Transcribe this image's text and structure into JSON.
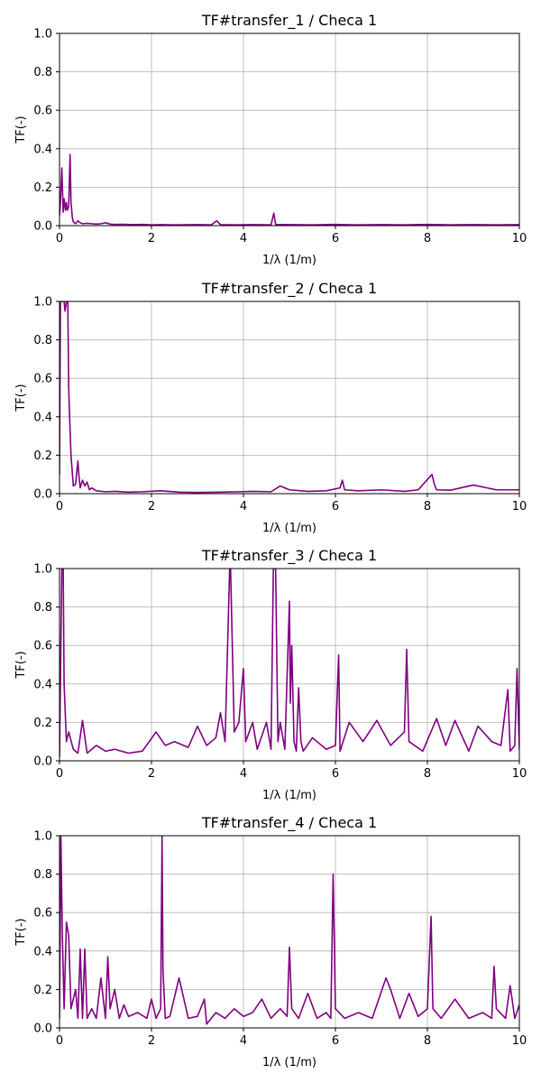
{
  "colors": {
    "line": "#800080",
    "grid": "#b0b0b0",
    "axes": "#000000"
  },
  "chart_data": [
    {
      "type": "line",
      "title": "TF#transfer_1 / Checa 1",
      "xlabel": "1/λ (1/m)",
      "ylabel": "TF(-)",
      "xlim": [
        0,
        10
      ],
      "ylim": [
        0,
        1
      ],
      "xticks": [
        "0",
        "2",
        "4",
        "6",
        "8",
        "10"
      ],
      "yticks": [
        "0.0",
        "0.2",
        "0.4",
        "0.6",
        "0.8",
        "1.0"
      ],
      "grid": true,
      "series": [
        {
          "x": [
            0,
            0.02,
            0.05,
            0.08,
            0.1,
            0.13,
            0.15,
            0.17,
            0.2,
            0.23,
            0.25,
            0.28,
            0.3,
            0.35,
            0.4,
            0.45,
            0.5,
            0.6,
            0.7,
            0.8,
            0.9,
            1.0,
            1.1,
            1.2,
            1.4,
            1.6,
            1.8,
            2.0,
            2.2,
            2.5,
            3.0,
            3.3,
            3.42,
            3.5,
            3.8,
            4.2,
            4.6,
            4.66,
            4.7,
            5.0,
            5.5,
            6.0,
            6.5,
            7.0,
            7.5,
            8.0,
            8.5,
            9.0,
            9.5,
            10.0
          ],
          "y": [
            0.05,
            0.12,
            0.3,
            0.07,
            0.14,
            0.08,
            0.12,
            0.08,
            0.1,
            0.37,
            0.12,
            0.04,
            0.02,
            0.01,
            0.025,
            0.015,
            0.01,
            0.012,
            0.01,
            0.008,
            0.01,
            0.015,
            0.008,
            0.006,
            0.007,
            0.005,
            0.006,
            0.004,
            0.005,
            0.004,
            0.005,
            0.004,
            0.025,
            0.005,
            0.004,
            0.005,
            0.004,
            0.065,
            0.006,
            0.005,
            0.004,
            0.006,
            0.004,
            0.005,
            0.004,
            0.006,
            0.004,
            0.005,
            0.004,
            0.005
          ]
        }
      ]
    },
    {
      "type": "line",
      "title": "TF#transfer_2 / Checa 1",
      "xlabel": "1/λ (1/m)",
      "ylabel": "TF(-)",
      "xlim": [
        0,
        10
      ],
      "ylim": [
        0,
        1
      ],
      "xticks": [
        "0",
        "2",
        "4",
        "6",
        "8",
        "10"
      ],
      "yticks": [
        "0.0",
        "0.2",
        "0.4",
        "0.6",
        "0.8",
        "1.0"
      ],
      "grid": true,
      "series": [
        {
          "x": [
            0,
            0.02,
            0.05,
            0.1,
            0.12,
            0.15,
            0.18,
            0.2,
            0.22,
            0.25,
            0.3,
            0.35,
            0.4,
            0.42,
            0.45,
            0.5,
            0.55,
            0.6,
            0.65,
            0.7,
            0.8,
            1.0,
            1.2,
            1.5,
            1.8,
            2.2,
            2.6,
            3.0,
            3.5,
            3.9,
            4.2,
            4.6,
            4.8,
            5.0,
            5.4,
            5.8,
            6.1,
            6.15,
            6.2,
            6.5,
            7.0,
            7.5,
            7.8,
            8.1,
            8.15,
            8.2,
            8.5,
            9.0,
            9.5,
            10.0
          ],
          "y": [
            0.1,
            1.0,
            1.0,
            1.0,
            0.95,
            1.0,
            1.0,
            0.55,
            0.4,
            0.2,
            0.04,
            0.05,
            0.17,
            0.1,
            0.03,
            0.07,
            0.04,
            0.06,
            0.02,
            0.03,
            0.015,
            0.01,
            0.012,
            0.008,
            0.01,
            0.015,
            0.008,
            0.006,
            0.008,
            0.01,
            0.012,
            0.01,
            0.04,
            0.02,
            0.012,
            0.015,
            0.03,
            0.07,
            0.02,
            0.015,
            0.02,
            0.012,
            0.02,
            0.1,
            0.05,
            0.02,
            0.018,
            0.045,
            0.02,
            0.02
          ]
        }
      ]
    },
    {
      "type": "line",
      "title": "TF#transfer_3 / Checa 1",
      "xlabel": "1/λ (1/m)",
      "ylabel": "TF(-)",
      "xlim": [
        0,
        10
      ],
      "ylim": [
        0,
        1
      ],
      "xticks": [
        "0",
        "2",
        "4",
        "6",
        "8",
        "10"
      ],
      "yticks": [
        "0.0",
        "0.2",
        "0.4",
        "0.6",
        "0.8",
        "1.0"
      ],
      "grid": true,
      "series": [
        {
          "x": [
            0,
            0.05,
            0.08,
            0.1,
            0.15,
            0.2,
            0.3,
            0.4,
            0.5,
            0.6,
            0.8,
            1.0,
            1.2,
            1.5,
            1.8,
            2.1,
            2.3,
            2.5,
            2.8,
            3.0,
            3.2,
            3.4,
            3.5,
            3.6,
            3.7,
            3.72,
            3.8,
            3.9,
            4.0,
            4.05,
            4.2,
            4.3,
            4.5,
            4.6,
            4.65,
            4.7,
            4.75,
            4.8,
            4.9,
            5.0,
            5.02,
            5.05,
            5.1,
            5.15,
            5.2,
            5.25,
            5.3,
            5.5,
            5.8,
            6.0,
            6.07,
            6.1,
            6.3,
            6.6,
            6.9,
            7.2,
            7.5,
            7.55,
            7.6,
            7.9,
            8.2,
            8.4,
            8.6,
            8.9,
            9.1,
            9.4,
            9.6,
            9.75,
            9.8,
            9.9,
            9.95,
            10.0
          ],
          "y": [
            0.02,
            1.0,
            1.0,
            0.4,
            0.1,
            0.15,
            0.06,
            0.04,
            0.21,
            0.04,
            0.08,
            0.05,
            0.06,
            0.04,
            0.05,
            0.15,
            0.08,
            0.1,
            0.07,
            0.18,
            0.08,
            0.12,
            0.25,
            0.1,
            1.0,
            1.0,
            0.15,
            0.2,
            0.48,
            0.1,
            0.2,
            0.06,
            0.2,
            0.06,
            1.0,
            1.0,
            0.1,
            0.2,
            0.06,
            0.83,
            0.3,
            0.6,
            0.1,
            0.05,
            0.38,
            0.1,
            0.05,
            0.12,
            0.06,
            0.08,
            0.55,
            0.05,
            0.2,
            0.1,
            0.21,
            0.08,
            0.15,
            0.58,
            0.1,
            0.05,
            0.22,
            0.08,
            0.21,
            0.05,
            0.18,
            0.1,
            0.08,
            0.37,
            0.05,
            0.08,
            0.48,
            0.06
          ]
        }
      ]
    },
    {
      "type": "line",
      "title": "TF#transfer_4 / Checa 1",
      "xlabel": "1/λ (1/m)",
      "ylabel": "TF(-)",
      "xlim": [
        0,
        10
      ],
      "ylim": [
        0,
        1
      ],
      "xticks": [
        "0",
        "2",
        "4",
        "6",
        "8",
        "10"
      ],
      "yticks": [
        "0.0",
        "0.2",
        "0.4",
        "0.6",
        "0.8",
        "1.0"
      ],
      "grid": true,
      "series": [
        {
          "x": [
            0,
            0.03,
            0.06,
            0.1,
            0.15,
            0.2,
            0.25,
            0.3,
            0.35,
            0.4,
            0.45,
            0.5,
            0.55,
            0.6,
            0.7,
            0.8,
            0.9,
            1.0,
            1.05,
            1.1,
            1.2,
            1.3,
            1.4,
            1.5,
            1.7,
            1.9,
            2.0,
            2.1,
            2.2,
            2.23,
            2.25,
            2.3,
            2.4,
            2.6,
            2.8,
            3.0,
            3.15,
            3.2,
            3.4,
            3.6,
            3.8,
            4.0,
            4.2,
            4.4,
            4.6,
            4.8,
            4.95,
            5.0,
            5.05,
            5.2,
            5.4,
            5.6,
            5.8,
            5.9,
            5.95,
            6.0,
            6.2,
            6.5,
            6.8,
            7.1,
            7.2,
            7.4,
            7.6,
            7.8,
            8.0,
            8.08,
            8.12,
            8.3,
            8.6,
            8.9,
            9.2,
            9.4,
            9.45,
            9.5,
            9.7,
            9.8,
            9.9,
            10.0
          ],
          "y": [
            0.05,
            1.0,
            0.5,
            0.1,
            0.55,
            0.48,
            0.1,
            0.15,
            0.2,
            0.05,
            0.41,
            0.05,
            0.41,
            0.05,
            0.1,
            0.05,
            0.26,
            0.05,
            0.37,
            0.1,
            0.2,
            0.05,
            0.12,
            0.06,
            0.08,
            0.05,
            0.15,
            0.05,
            0.1,
            1.0,
            0.3,
            0.05,
            0.06,
            0.26,
            0.05,
            0.06,
            0.15,
            0.02,
            0.08,
            0.05,
            0.1,
            0.06,
            0.08,
            0.15,
            0.05,
            0.1,
            0.06,
            0.42,
            0.1,
            0.05,
            0.18,
            0.05,
            0.08,
            0.05,
            0.8,
            0.1,
            0.05,
            0.08,
            0.05,
            0.26,
            0.2,
            0.05,
            0.18,
            0.06,
            0.1,
            0.58,
            0.1,
            0.05,
            0.15,
            0.05,
            0.08,
            0.05,
            0.32,
            0.1,
            0.05,
            0.22,
            0.05,
            0.12
          ]
        }
      ]
    }
  ]
}
